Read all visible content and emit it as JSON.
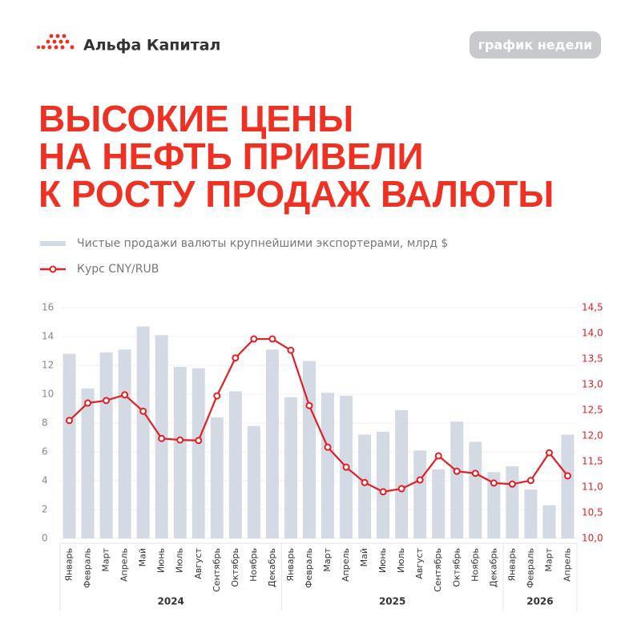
{
  "header": {
    "brand": "Альфа Капитал",
    "badge": "график недели"
  },
  "chart_data": {
    "type": "bar_line",
    "title_lines": [
      "ВЫСОКИЕ ЦЕНЫ",
      "НА НЕФТЬ ПРИВЕЛИ",
      "К РОСТУ ПРОДАЖ ВАЛЮТЫ"
    ],
    "categories": [
      "Январь",
      "Февраль",
      "Март",
      "Апрель",
      "Май",
      "Июнь",
      "Июль",
      "Август",
      "Сентябрь",
      "Октябрь",
      "Ноябрь",
      "Декабрь",
      "Январь",
      "Февраль",
      "Март",
      "Апрель",
      "Май",
      "Июнь",
      "Июль",
      "Август",
      "Сентябрь",
      "Октябрь",
      "Ноябрь",
      "Декабрь",
      "Январь",
      "Февраль",
      "Март",
      "Апрель"
    ],
    "x_groups": [
      {
        "label": "2024",
        "count": 12
      },
      {
        "label": "2025",
        "count": 12
      },
      {
        "label": "2026",
        "count": 4
      }
    ],
    "series": [
      {
        "name": "Чистые продажи валюты крупнейшими экспортерами, млрд $",
        "type": "bar",
        "color": "#d3dae4",
        "values": [
          12.8,
          10.4,
          12.9,
          13.1,
          14.7,
          14.1,
          11.9,
          11.8,
          8.4,
          10.2,
          7.8,
          13.1,
          9.8,
          12.3,
          10.1,
          9.9,
          7.2,
          7.4,
          8.9,
          6.1,
          4.8,
          8.1,
          6.7,
          4.6,
          5.0,
          3.4,
          2.3,
          7.2
        ]
      },
      {
        "name": "Курс CNY/RUB",
        "type": "line",
        "axis": "y2",
        "color": "#e31e24",
        "values": [
          12.3,
          12.64,
          12.69,
          12.8,
          12.48,
          11.95,
          11.92,
          11.91,
          12.78,
          13.52,
          13.89,
          13.89,
          13.67,
          12.59,
          11.78,
          11.39,
          11.09,
          10.91,
          10.97,
          11.14,
          11.61,
          11.31,
          11.27,
          11.08,
          11.06,
          11.13,
          11.67,
          11.22
        ]
      }
    ],
    "ylim": [
      0,
      16
    ],
    "yticks": [
      0,
      2,
      4,
      6,
      8,
      10,
      12,
      14,
      16
    ],
    "y2lim": [
      10,
      14.5
    ],
    "y2ticks": [
      {
        "value": 10,
        "label": "10,0"
      },
      {
        "value": 10.5,
        "label": "10,5"
      },
      {
        "value": 11,
        "label": "11,0"
      },
      {
        "value": 11.5,
        "label": "11,5"
      },
      {
        "value": 12,
        "label": "12,0"
      },
      {
        "value": 12.5,
        "label": "12,5"
      },
      {
        "value": 13,
        "label": "13,0"
      },
      {
        "value": 13.5,
        "label": "13,5"
      },
      {
        "value": 14,
        "label": "14,0"
      },
      {
        "value": 14.5,
        "label": "14,5"
      }
    ],
    "grid": true
  }
}
